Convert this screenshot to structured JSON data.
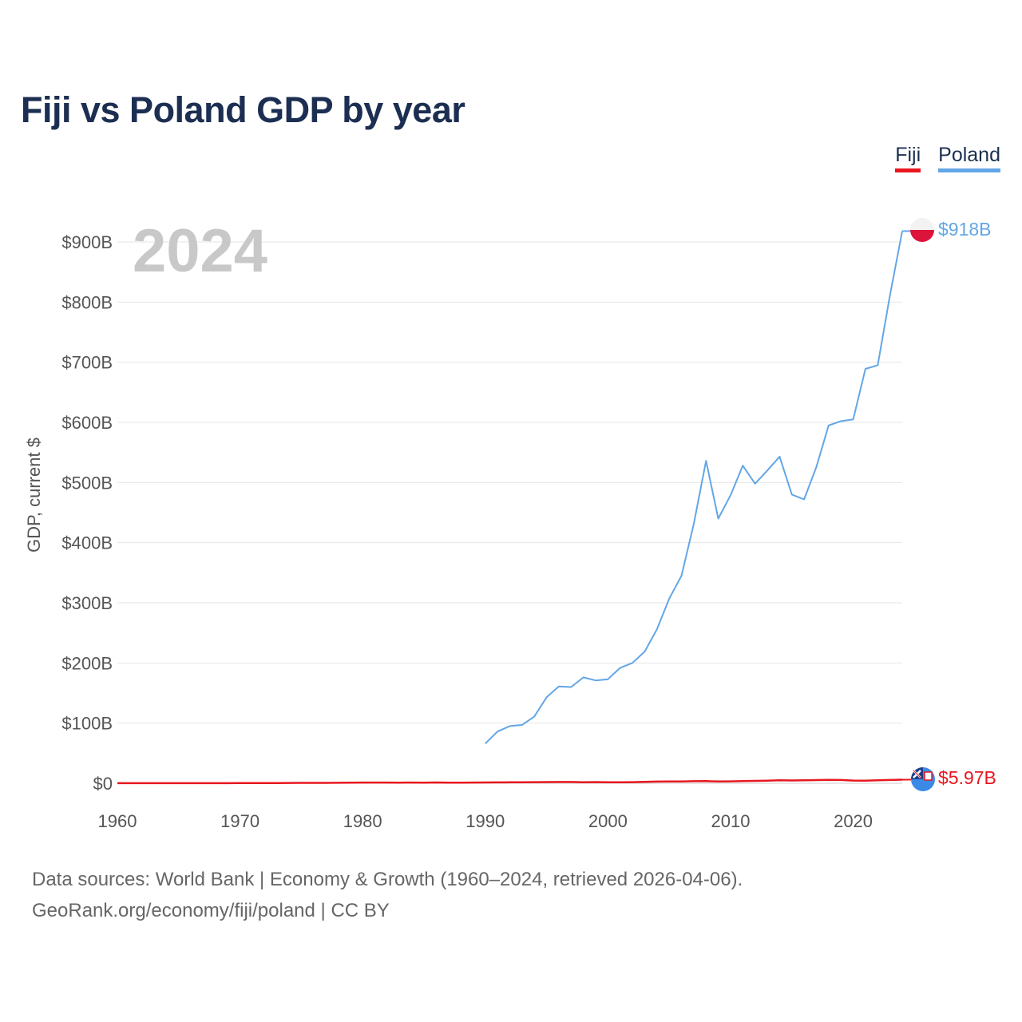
{
  "title": "Fiji vs Poland GDP by year",
  "legend": [
    {
      "name": "Fiji",
      "color": "#e8171f"
    },
    {
      "name": "Poland",
      "color": "#63a6e6"
    }
  ],
  "source": {
    "line1": "Data sources: World Bank | Economy & Growth (1960–2024, retrieved 2026-04-06).",
    "line2": "GeoRank.org/economy/fiji/poland | CC BY"
  },
  "chart_data": {
    "type": "line",
    "title": "Fiji vs Poland GDP by year",
    "ylabel": "GDP, current $",
    "xlabel": "",
    "year_overlay": "2024",
    "xlim": [
      1960,
      2024
    ],
    "ylim": [
      0,
      900
    ],
    "units": "billions of current US$",
    "x_ticks": [
      1960,
      1970,
      1980,
      1990,
      2000,
      2010,
      2020
    ],
    "x_tick_labels": [
      "1960",
      "1970",
      "1980",
      "1990",
      "2000",
      "2010",
      "2020"
    ],
    "y_ticks": [
      0,
      100,
      200,
      300,
      400,
      500,
      600,
      700,
      800,
      900
    ],
    "y_tick_labels": [
      "$0",
      "$100B",
      "$200B",
      "$300B",
      "$400B",
      "$500B",
      "$600B",
      "$700B",
      "$800B",
      "$900B"
    ],
    "grid": true,
    "legend_position": "top-right",
    "series": [
      {
        "name": "Fiji",
        "color": "#e8171f",
        "end_label": "$5.97B",
        "x": [
          1960,
          1961,
          1962,
          1963,
          1964,
          1965,
          1966,
          1967,
          1968,
          1969,
          1970,
          1971,
          1972,
          1973,
          1974,
          1975,
          1976,
          1977,
          1978,
          1979,
          1980,
          1981,
          1982,
          1983,
          1984,
          1985,
          1986,
          1987,
          1988,
          1989,
          1990,
          1991,
          1992,
          1993,
          1994,
          1995,
          1996,
          1997,
          1998,
          1999,
          2000,
          2001,
          2002,
          2003,
          2004,
          2005,
          2006,
          2007,
          2008,
          2009,
          2010,
          2011,
          2012,
          2013,
          2014,
          2015,
          2016,
          2017,
          2018,
          2019,
          2020,
          2021,
          2022,
          2023,
          2024
        ],
        "values": [
          0.11,
          0.12,
          0.12,
          0.13,
          0.14,
          0.14,
          0.15,
          0.16,
          0.17,
          0.18,
          0.22,
          0.25,
          0.33,
          0.44,
          0.57,
          0.68,
          0.69,
          0.72,
          0.82,
          0.99,
          1.2,
          1.22,
          1.17,
          1.11,
          1.16,
          1.12,
          1.27,
          1.09,
          1.07,
          1.17,
          1.34,
          1.41,
          1.58,
          1.64,
          1.82,
          1.97,
          2.13,
          2.09,
          1.66,
          2.03,
          1.68,
          1.66,
          1.84,
          2.31,
          2.73,
          3.01,
          3.1,
          3.41,
          3.52,
          2.87,
          3.14,
          3.77,
          3.97,
          4.19,
          4.86,
          4.68,
          4.93,
          5.35,
          5.58,
          5.45,
          4.48,
          4.34,
          4.98,
          5.44,
          5.97
        ]
      },
      {
        "name": "Poland",
        "color": "#63a6e6",
        "end_label": "$918B",
        "x": [
          1990,
          1991,
          1992,
          1993,
          1994,
          1995,
          1996,
          1997,
          1998,
          1999,
          2000,
          2001,
          2002,
          2003,
          2004,
          2005,
          2006,
          2007,
          2008,
          2009,
          2010,
          2011,
          2012,
          2013,
          2014,
          2015,
          2016,
          2017,
          2018,
          2019,
          2020,
          2021,
          2022,
          2023,
          2024
        ],
        "values": [
          66,
          86,
          95,
          97,
          111,
          143,
          161,
          160,
          176,
          171,
          173,
          192,
          200,
          219,
          256,
          307,
          345,
          431,
          536,
          440,
          479,
          528,
          498,
          520,
          543,
          480,
          472,
          526,
          595,
          602,
          605,
          689,
          695,
          811,
          918
        ]
      }
    ]
  }
}
